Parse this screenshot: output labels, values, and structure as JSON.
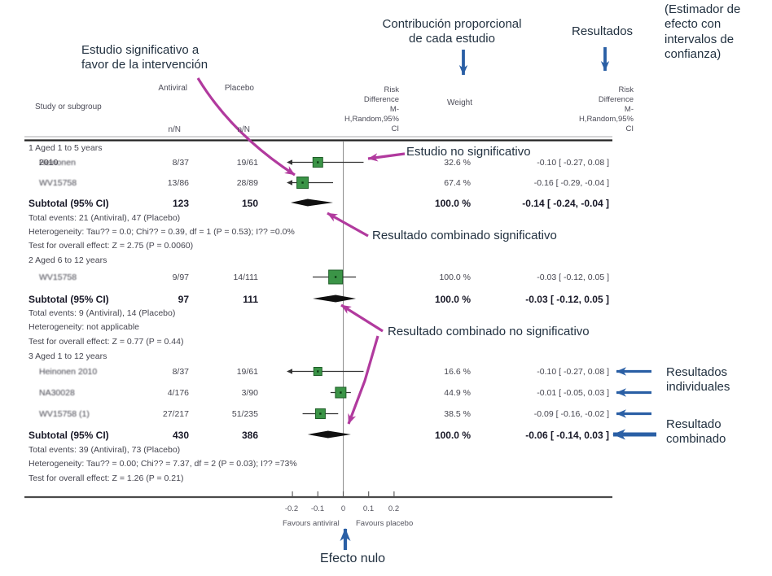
{
  "annotations": {
    "estudio_significativo": "Estudio significativo a\nfavor de la intervención",
    "contribucion_proporcional": "Contribución proporcional\nde cada estudio",
    "resultados": "Resultados",
    "estimador": "(Estimador de\nefecto con\nintervalos de\nconfianza)",
    "estudio_no_significativo": "Estudio no significativo",
    "resultado_combinado_significativo": "Resultado combinado significativo",
    "resultado_combinado_no_significativo": "Resultado combinado no significativo",
    "resultados_individuales": "Resultados\nindividuales",
    "resultado_combinado": "Resultado\ncombinado",
    "efecto_nulo": "Efecto nulo"
  },
  "header": {
    "study": "Study or subgroup",
    "antiviral": "Antiviral",
    "placebo": "Placebo",
    "n_n": "n/N",
    "risk_difference": "Risk\nDifference\nM-\nH,Random,95%\nCI",
    "weight": "Weight"
  },
  "axis": {
    "ticks": [
      "-0.2",
      "-0.1",
      "0",
      "0.1",
      "0.2"
    ],
    "favours_left": "Favours antiviral",
    "favours_right": "Favours placebo"
  },
  "colors": {
    "arrow_blue": "#2a5fa5",
    "arrow_magenta": "#b13a9e",
    "marker_green": "#3b9447",
    "marker_green_border": "#1f5e28",
    "diamond_black": "#101010",
    "ci_line": "#333333"
  },
  "chart_data": {
    "type": "forest",
    "effect_measure": "Risk Difference M-H,Random,95% CI",
    "x_ticks": [
      -0.2,
      -0.1,
      0,
      0.1,
      0.2
    ],
    "x_axis_left_label": "Favours antiviral",
    "x_axis_right_label": "Favours placebo",
    "subgroups": [
      {
        "name": "1 Aged 1 to 5 years",
        "studies": [
          {
            "name_redacted": "Heinonen",
            "name_visible": " 2010",
            "antiviral": "8/37",
            "placebo": "19/61",
            "weight": "32.6 %",
            "estimate": -0.1,
            "ci": [
              -0.27,
              0.08
            ],
            "ci_label": "-0.10 [ -0.27, 0.08 ]"
          },
          {
            "name_redacted": "WV15758",
            "name_visible": "",
            "antiviral": "13/86",
            "placebo": "28/89",
            "weight": "67.4 %",
            "estimate": -0.16,
            "ci": [
              -0.29,
              -0.04
            ],
            "ci_label": "-0.16 [ -0.29, -0.04 ]"
          }
        ],
        "subtotal": {
          "label": "Subtotal (95% CI)",
          "antiviral": "123",
          "placebo": "150",
          "weight": "100.0 %",
          "estimate": -0.14,
          "ci": [
            -0.24,
            -0.04
          ],
          "ci_label": "-0.14 [ -0.24, -0.04 ]"
        },
        "notes": [
          "Total events: 21 (Antiviral), 47 (Placebo)",
          "Heterogeneity: Tau?? = 0.0; Chi?? = 0.39, df = 1 (P = 0.53); I?? =0.0%",
          "Test for overall effect: Z = 2.75 (P = 0.0060)"
        ]
      },
      {
        "name": "2 Aged 6 to 12 years",
        "studies": [
          {
            "name_redacted": "WV15758",
            "name_visible": "",
            "antiviral": "9/97",
            "placebo": "14/111",
            "weight": "100.0 %",
            "estimate": -0.03,
            "ci": [
              -0.12,
              0.05
            ],
            "ci_label": "-0.03 [ -0.12, 0.05 ]"
          }
        ],
        "subtotal": {
          "label": "Subtotal (95% CI)",
          "antiviral": "97",
          "placebo": "111",
          "weight": "100.0 %",
          "estimate": -0.03,
          "ci": [
            -0.12,
            0.05
          ],
          "ci_label": "-0.03 [ -0.12, 0.05 ]"
        },
        "notes": [
          "Total events: 9 (Antiviral), 14 (Placebo)",
          "Heterogeneity: not applicable",
          "Test for overall effect: Z = 0.77 (P = 0.44)"
        ]
      },
      {
        "name": "3 Aged 1 to 12 years",
        "studies": [
          {
            "name_redacted": "Heinonen 2010",
            "name_visible": "",
            "antiviral": "8/37",
            "placebo": "19/61",
            "weight": "16.6 %",
            "estimate": -0.1,
            "ci": [
              -0.27,
              0.08
            ],
            "ci_label": "-0.10 [ -0.27, 0.08 ]"
          },
          {
            "name_redacted": "NA30028",
            "name_visible": "",
            "antiviral": "4/176",
            "placebo": "3/90",
            "weight": "44.9 %",
            "estimate": -0.01,
            "ci": [
              -0.05,
              0.03
            ],
            "ci_label": "-0.01 [ -0.05, 0.03 ]"
          },
          {
            "name_redacted": "WV15758 (1)",
            "name_visible": "",
            "antiviral": "27/217",
            "placebo": "51/235",
            "weight": "38.5 %",
            "estimate": -0.09,
            "ci": [
              -0.16,
              -0.02
            ],
            "ci_label": "-0.09 [ -0.16, -0.02 ]"
          }
        ],
        "subtotal": {
          "label": "Subtotal (95% CI)",
          "antiviral": "430",
          "placebo": "386",
          "weight": "100.0 %",
          "estimate": -0.06,
          "ci": [
            -0.14,
            0.03
          ],
          "ci_label": "-0.06 [ -0.14, 0.03 ]"
        },
        "notes": [
          "Total events: 39 (Antiviral), 73 (Placebo)",
          "Heterogeneity: Tau?? = 0.00; Chi?? = 7.37, df = 2 (P = 0.03); I?? =73%",
          "Test for overall effect: Z = 1.26 (P = 0.21)"
        ]
      }
    ]
  }
}
